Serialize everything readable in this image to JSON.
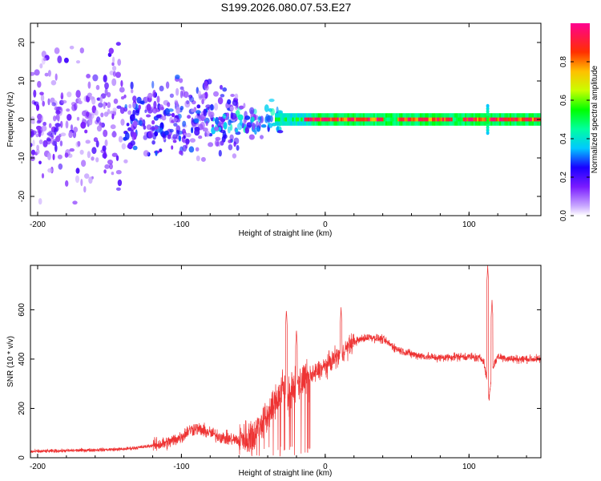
{
  "title": "S199.2026.080.07.53.E27",
  "chart_data": [
    {
      "type": "heatmap",
      "xlabel": "Height of straight line (km)",
      "ylabel": "Frequency (Hz)",
      "xlim": [
        -205,
        150
      ],
      "ylim": [
        -25,
        25
      ],
      "x_ticks": [
        -200,
        -100,
        0,
        100
      ],
      "y_ticks": [
        -20,
        -10,
        0,
        10,
        20
      ],
      "colorbar": {
        "label": "Normalized spectral amplitude",
        "range": [
          0,
          1
        ],
        "ticks": [
          "0.0",
          "0.2",
          "0.4",
          "0.6",
          "0.8"
        ],
        "colors": [
          "#ffffff",
          "#b58cff",
          "#5500ff",
          "#0000ff",
          "#00ffff",
          "#00ff00",
          "#ffff00",
          "#ff8800",
          "#ff0000",
          "#ff00aa"
        ]
      },
      "description_segments": [
        {
          "x_range": [
            -205,
            -140
          ],
          "freq_spread": 25,
          "typical_amplitude": 0.12
        },
        {
          "x_range": [
            -140,
            -60
          ],
          "freq_spread": 12,
          "typical_amplitude": 0.18
        },
        {
          "x_range": [
            -60,
            -30
          ],
          "freq_spread": 6,
          "typical_amplitude": 0.25
        },
        {
          "x_range": [
            -30,
            150
          ],
          "freq_spread": 1.5,
          "typical_amplitude": 0.9
        }
      ]
    },
    {
      "type": "line",
      "xlabel": "Height of straight line (km)",
      "ylabel": "SNR (10 * v/v)",
      "xlim": [
        -205,
        150
      ],
      "ylim": [
        0,
        780
      ],
      "x_ticks": [
        -200,
        -100,
        0,
        100
      ],
      "y_ticks": [
        0,
        200,
        400,
        600
      ],
      "color": "#ee3333",
      "envelope": {
        "x": [
          -205,
          -170,
          -140,
          -125,
          -110,
          -100,
          -95,
          -90,
          -80,
          -70,
          -60,
          -50,
          -45,
          -40,
          -35,
          -30,
          -25,
          -20,
          -15,
          -10,
          -5,
          0,
          10,
          20,
          30,
          40,
          50,
          60,
          70,
          80,
          90,
          100,
          110,
          112,
          114,
          116,
          120,
          130,
          140,
          150
        ],
        "y": [
          25,
          30,
          35,
          45,
          60,
          85,
          110,
          120,
          100,
          80,
          70,
          95,
          130,
          170,
          220,
          280,
          260,
          300,
          310,
          330,
          350,
          370,
          420,
          470,
          490,
          480,
          440,
          420,
          410,
          405,
          410,
          410,
          400,
          330,
          240,
          360,
          410,
          400,
          400,
          400
        ]
      },
      "peaks": [
        {
          "x": -27,
          "y": 600
        },
        {
          "x": -20,
          "y": 520
        },
        {
          "x": 11,
          "y": 610
        },
        {
          "x": 113,
          "y": 780
        },
        {
          "x": 116,
          "y": 640
        }
      ]
    }
  ]
}
